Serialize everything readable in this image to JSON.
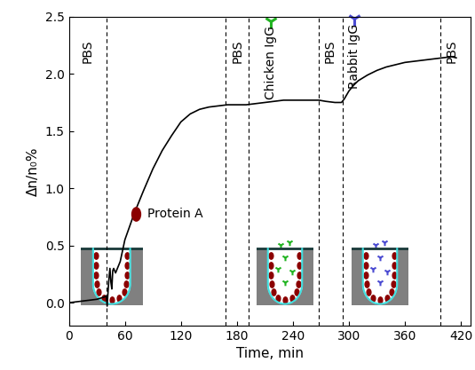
{
  "chart_data": {
    "type": "line",
    "x_label": "Time, min",
    "y_label": "Δn/n₀%",
    "color": "#000000",
    "x": [
      0,
      10,
      20,
      30,
      38,
      40,
      41,
      42,
      43,
      44,
      45,
      46,
      47,
      48,
      50,
      52,
      55,
      60,
      70,
      80,
      90,
      100,
      110,
      120,
      130,
      140,
      150,
      160,
      170,
      180,
      190,
      200,
      210,
      220,
      230,
      240,
      250,
      260,
      268,
      275,
      285,
      292,
      295,
      300,
      305,
      310,
      320,
      330,
      340,
      350,
      360,
      370,
      380,
      390,
      400,
      410,
      415
    ],
    "values": [
      0.0,
      0.01,
      0.02,
      0.03,
      0.05,
      0.06,
      -0.03,
      0.1,
      0.22,
      0.3,
      0.18,
      0.12,
      0.28,
      0.3,
      0.26,
      0.3,
      0.36,
      0.55,
      0.78,
      0.98,
      1.17,
      1.33,
      1.46,
      1.58,
      1.65,
      1.69,
      1.71,
      1.72,
      1.73,
      1.73,
      1.73,
      1.74,
      1.75,
      1.76,
      1.77,
      1.77,
      1.77,
      1.77,
      1.77,
      1.76,
      1.75,
      1.75,
      1.78,
      1.85,
      1.9,
      1.94,
      1.99,
      2.03,
      2.06,
      2.08,
      2.1,
      2.11,
      2.12,
      2.13,
      2.14,
      2.15,
      2.14
    ],
    "xlim": [
      0,
      430
    ],
    "xticks": [
      0,
      60,
      120,
      180,
      240,
      300,
      360,
      420
    ],
    "ylim": [
      -0.2,
      2.5
    ],
    "yticks": [
      {
        "value": 0,
        "label": "0.0"
      },
      {
        "value": 0.5,
        "label": "0.5"
      },
      {
        "value": 1.0,
        "label": "1.0"
      },
      {
        "value": 1.5,
        "label": "1.5"
      },
      {
        "value": 2.0,
        "label": "2.0"
      },
      {
        "value": 2.5,
        "label": "2.5"
      }
    ],
    "phase_boundaries": [
      40,
      168,
      193,
      268,
      293,
      398
    ],
    "phase_labels": [
      {
        "text": "PBS",
        "x": 20,
        "y": 2.2
      },
      {
        "text": "PBS",
        "x": 181,
        "y": 2.2
      },
      {
        "text": "Chicken IgG",
        "x": 216,
        "y": 2.1,
        "color": "#22b422",
        "marker": "Y"
      },
      {
        "text": "PBS",
        "x": 280,
        "y": 2.2
      },
      {
        "text": "Rabbit IgG",
        "x": 306,
        "y": 2.15,
        "color": "#4b4bd2",
        "marker": "Y"
      },
      {
        "text": "PBS",
        "x": 410,
        "y": 2.2
      }
    ],
    "annotations": [
      {
        "text": "Protein A",
        "x": 84,
        "y": 0.78,
        "color": "#8b0000",
        "marker": "ellipse"
      }
    ]
  }
}
